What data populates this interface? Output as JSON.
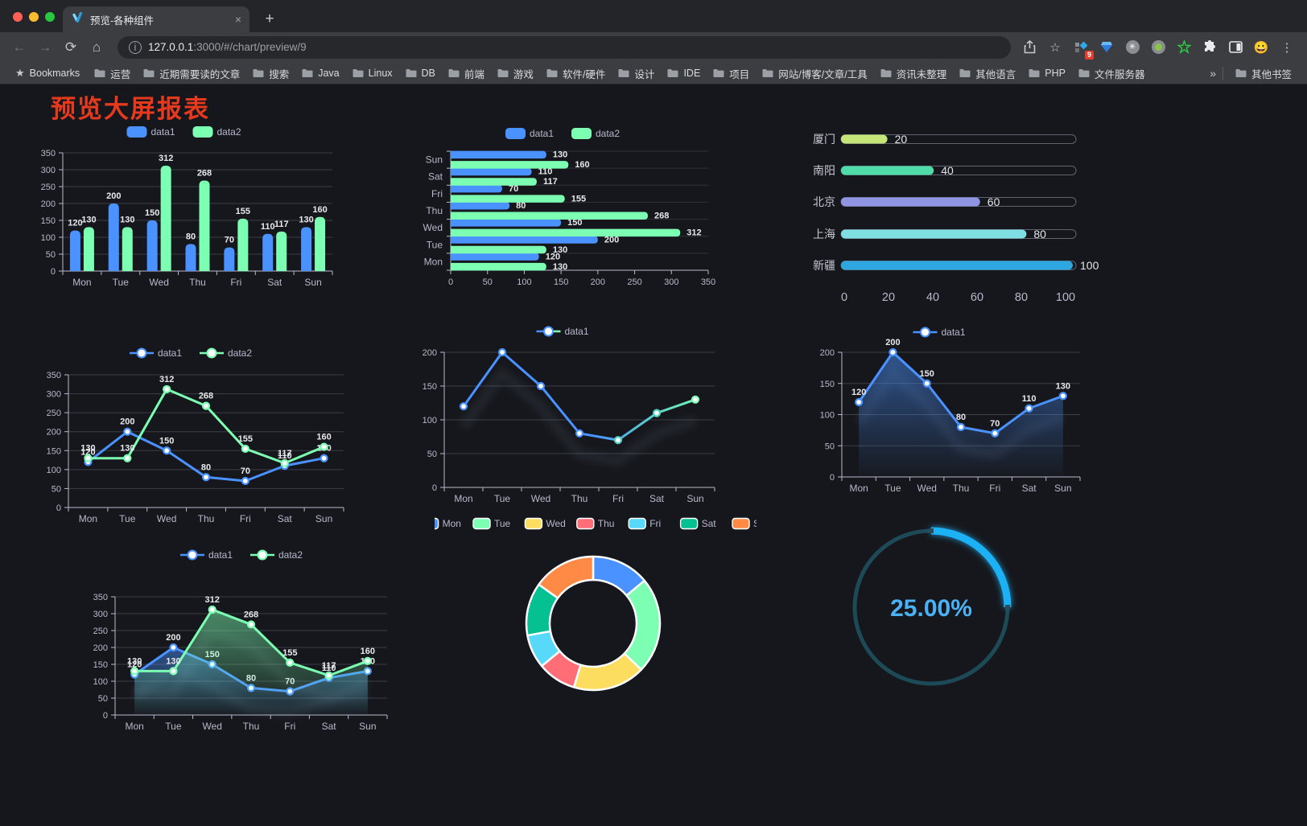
{
  "browser": {
    "tab_title": "预览-各种组件",
    "tab_close": "×",
    "new_tab": "+",
    "url": {
      "info": "i",
      "host": "127.0.0.1",
      "rest": ":3000/#/chart/preview/9"
    },
    "extension_badge": "9",
    "bookmarks_label": "Bookmarks",
    "bookmark_folders": [
      "运营",
      "近期需要读的文章",
      "搜索",
      "Java",
      "Linux",
      "DB",
      "前端",
      "游戏",
      "软件/硬件",
      "设计",
      "IDE",
      "项目",
      "网站/博客/文章/工具",
      "资讯未整理",
      "其他语言",
      "PHP",
      "文件服务器"
    ],
    "bookmarks_overflow": "»",
    "other_bookmarks": "其他书签"
  },
  "page": {
    "title": "预览大屏报表",
    "title_color": "#e63a1e",
    "background": "#16171c"
  },
  "chart_data": [
    {
      "id": "grouped-bar",
      "type": "bar",
      "categories": [
        "Mon",
        "Tue",
        "Wed",
        "Thu",
        "Fri",
        "Sat",
        "Sun"
      ],
      "series": [
        {
          "name": "data1",
          "color": "#4992ff",
          "values": [
            120,
            200,
            150,
            80,
            70,
            110,
            130
          ]
        },
        {
          "name": "data2",
          "color": "#7cffb2",
          "values": [
            130,
            130,
            312,
            268,
            155,
            117,
            160
          ]
        }
      ],
      "ylim": [
        0,
        350
      ],
      "yticks": [
        0,
        50,
        100,
        150,
        200,
        250,
        300,
        350
      ],
      "legend": [
        "data1",
        "data2"
      ],
      "legend_position": "top",
      "grid": true,
      "value_labels": true
    },
    {
      "id": "grouped-hbar",
      "type": "bar-horizontal",
      "categories": [
        "Mon",
        "Tue",
        "Wed",
        "Thu",
        "Fri",
        "Sat",
        "Sun"
      ],
      "series": [
        {
          "name": "data1",
          "color": "#4992ff",
          "values": [
            120,
            200,
            150,
            80,
            70,
            110,
            130
          ]
        },
        {
          "name": "data2",
          "color": "#7cffb2",
          "values": [
            130,
            130,
            312,
            268,
            155,
            117,
            160
          ]
        }
      ],
      "xlim": [
        0,
        350
      ],
      "xticks": [
        0,
        50,
        100,
        150,
        200,
        250,
        300,
        350
      ],
      "legend": [
        "data1",
        "data2"
      ],
      "legend_position": "top",
      "value_labels": true
    },
    {
      "id": "city-progress",
      "type": "progress-bars",
      "items": [
        {
          "label": "厦门",
          "value": 20,
          "color": "#c6e579"
        },
        {
          "label": "南阳",
          "value": 40,
          "color": "#50dca8"
        },
        {
          "label": "北京",
          "value": 60,
          "color": "#8f94e3"
        },
        {
          "label": "上海",
          "value": 80,
          "color": "#7edee2"
        },
        {
          "label": "新疆",
          "value": 100,
          "color": "#2ea7e0"
        }
      ],
      "max": 100,
      "axis_ticks": [
        0,
        20,
        40,
        60,
        80,
        100
      ]
    },
    {
      "id": "two-line",
      "type": "line",
      "categories": [
        "Mon",
        "Tue",
        "Wed",
        "Thu",
        "Fri",
        "Sat",
        "Sun"
      ],
      "series": [
        {
          "name": "data1",
          "color": "#4992ff",
          "values": [
            120,
            200,
            150,
            80,
            70,
            110,
            130
          ]
        },
        {
          "name": "data2",
          "color": "#7cffb2",
          "values": [
            130,
            130,
            312,
            268,
            155,
            117,
            160
          ]
        }
      ],
      "ylim": [
        0,
        350
      ],
      "yticks": [
        0,
        50,
        100,
        150,
        200,
        250,
        300,
        350
      ],
      "legend": [
        "data1",
        "data2"
      ],
      "legend_position": "top",
      "value_labels": true
    },
    {
      "id": "gradient-line",
      "type": "line",
      "categories": [
        "Mon",
        "Tue",
        "Wed",
        "Thu",
        "Fri",
        "Sat",
        "Sun"
      ],
      "series": [
        {
          "name": "data1",
          "color": "#4992ff",
          "color2": "#7cffb2",
          "gradient": true,
          "values": [
            120,
            200,
            150,
            80,
            70,
            110,
            130
          ]
        }
      ],
      "ylim": [
        0,
        200
      ],
      "yticks": [
        0,
        50,
        100,
        150,
        200
      ],
      "legend": [
        "data1"
      ],
      "legend_position": "top",
      "value_labels": false,
      "shadow": true
    },
    {
      "id": "blue-area",
      "type": "area",
      "categories": [
        "Mon",
        "Tue",
        "Wed",
        "Thu",
        "Fri",
        "Sat",
        "Sun"
      ],
      "series": [
        {
          "name": "data1",
          "color": "#4992ff",
          "values": [
            120,
            200,
            150,
            80,
            70,
            110,
            130
          ]
        }
      ],
      "ylim": [
        0,
        200
      ],
      "yticks": [
        0,
        50,
        100,
        150,
        200
      ],
      "legend": [
        "data1"
      ],
      "legend_position": "top",
      "value_labels": true,
      "shadow": true
    },
    {
      "id": "two-area",
      "type": "area",
      "categories": [
        "Mon",
        "Tue",
        "Wed",
        "Thu",
        "Fri",
        "Sat",
        "Sun"
      ],
      "series": [
        {
          "name": "data1",
          "color": "#4992ff",
          "values": [
            120,
            200,
            150,
            80,
            70,
            110,
            130
          ]
        },
        {
          "name": "data2",
          "color": "#7cffb2",
          "values": [
            130,
            130,
            312,
            268,
            155,
            117,
            160
          ]
        }
      ],
      "ylim": [
        0,
        350
      ],
      "yticks": [
        0,
        50,
        100,
        150,
        200,
        250,
        300,
        350
      ],
      "legend": [
        "data1",
        "data2"
      ],
      "legend_position": "top",
      "value_labels": true,
      "shadow": true
    },
    {
      "id": "donut",
      "type": "pie",
      "labels": [
        "Mon",
        "Tue",
        "Wed",
        "Thu",
        "Fri",
        "Sat",
        "Sun"
      ],
      "values": [
        120,
        200,
        150,
        80,
        70,
        110,
        130
      ],
      "colors": [
        "#4992ff",
        "#7cffb2",
        "#fddd60",
        "#ff6e76",
        "#58d9f9",
        "#05c091",
        "#ff8a45"
      ],
      "donut": true,
      "border_color": "#ffffff",
      "legend_position": "top"
    },
    {
      "id": "gauge",
      "type": "gauge",
      "value": 25,
      "display": "25.00%",
      "progress_color": "#1fb0f5",
      "track_color": "#1d4a57",
      "text_color": "#4ab2f4"
    }
  ]
}
